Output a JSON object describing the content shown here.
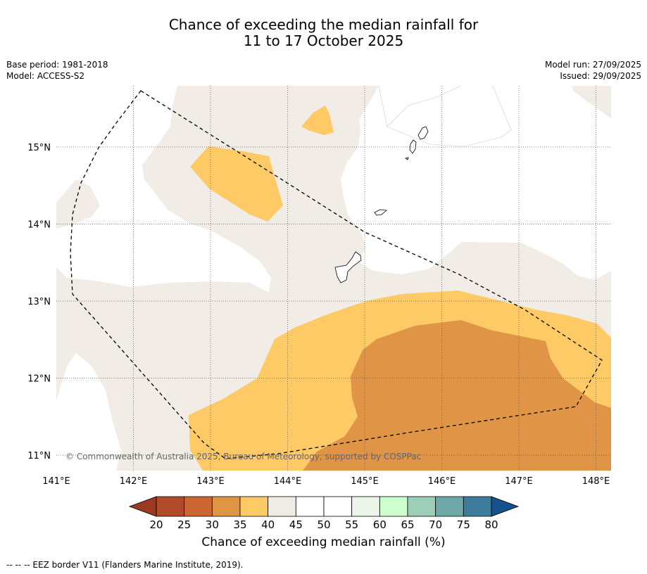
{
  "title": {
    "line1": "Chance of exceeding the median rainfall for",
    "line2": "11 to 17 October 2025"
  },
  "meta": {
    "base_period": "Base period: 1981-2018",
    "model": "Model: ACCESS-S2",
    "model_run": "Model run: 27/09/2025",
    "issued": "Issued: 29/09/2025"
  },
  "map": {
    "lon_ticks": [
      "141°E",
      "142°E",
      "143°E",
      "144°E",
      "145°E",
      "146°E",
      "147°E",
      "148°E"
    ],
    "lat_ticks": [
      "15°N",
      "14°N",
      "13°N",
      "12°N",
      "11°N"
    ],
    "copyright": "© Commonwealth of Australia 2025, Bureau of Meteorology, supported by COSPPac"
  },
  "colorbar": {
    "title": "Chance of exceeding median rainfall (%)",
    "ticks": [
      "20",
      "25",
      "30",
      "35",
      "40",
      "45",
      "50",
      "55",
      "60",
      "65",
      "70",
      "75",
      "80"
    ],
    "colors": [
      "#b04a28",
      "#cc6633",
      "#e09445",
      "#fdca65",
      "#f1ece6",
      "#ffffff",
      "#ffffff",
      "#ebf5e9",
      "#ccffcc",
      "#9dcfb8",
      "#6fa9a7",
      "#3f7b9a"
    ],
    "below_color": "#9a3a20",
    "above_color": "#13528c"
  },
  "palette": {
    "neutral": "#f1ece6",
    "yellow": "#fdca65",
    "orange": "#e09445"
  },
  "footer": {
    "legend": "-- -- -- EEZ border V11 (Flanders Marine Institute, 2019)."
  }
}
